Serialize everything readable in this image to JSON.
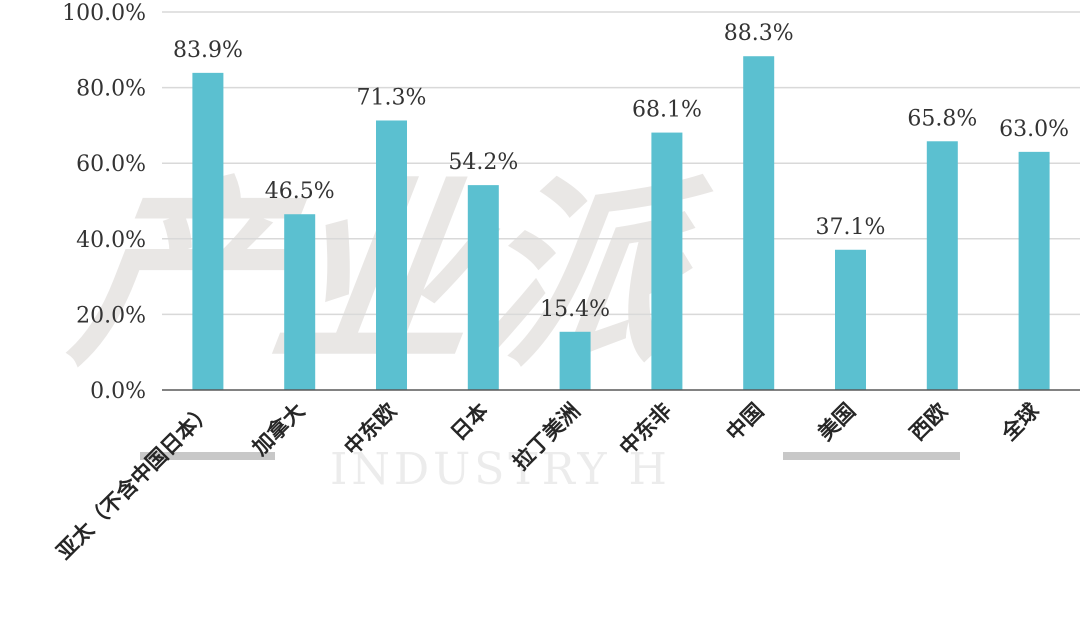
{
  "watermark": {
    "cn": "产业派",
    "en": "INDUSTRY H"
  },
  "colors": {
    "bar": "#5bc0d0",
    "grid": "#d9d9d9",
    "axis": "#595959"
  },
  "chart_data": {
    "type": "bar",
    "categories": [
      "亚太（不含中国日本）",
      "加拿大",
      "中东欧",
      "日本",
      "拉丁美洲",
      "中东非",
      "中国",
      "美国",
      "西欧",
      "全球"
    ],
    "values": [
      83.9,
      46.5,
      71.3,
      54.2,
      15.4,
      68.1,
      88.3,
      37.1,
      65.8,
      63.0
    ],
    "value_labels": [
      "83.9%",
      "46.5%",
      "71.3%",
      "54.2%",
      "15.4%",
      "68.1%",
      "88.3%",
      "37.1%",
      "65.8%",
      "63.0%"
    ],
    "ylim": [
      0,
      100
    ],
    "yticks": [
      0,
      20,
      40,
      60,
      80,
      100
    ],
    "ytick_labels": [
      "0.0%",
      "20.0%",
      "40.0%",
      "60.0%",
      "80.0%",
      "100.0%"
    ],
    "title": "",
    "xlabel": "",
    "ylabel": "",
    "grid": true,
    "legend": "none"
  }
}
